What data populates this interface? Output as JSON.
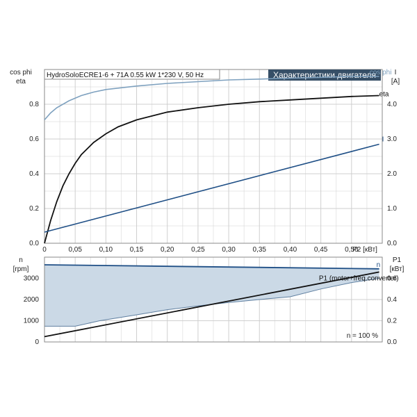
{
  "chart_data": [
    {
      "type": "line",
      "subtitle": "HydroSoloECRE1-6 + 71A   0.55 kW   1*230 V, 50 Hz",
      "title": "Характеристики двигателя",
      "xlabel": "P2 [кВт]",
      "ylabel_left": [
        "cos phi",
        "eta"
      ],
      "ylabel_right": [
        "I",
        "[A]"
      ],
      "xlim": [
        0,
        0.55
      ],
      "ylim_left": [
        0,
        1.0
      ],
      "ylim_right": [
        0,
        5.0
      ],
      "x_ticks": [
        "0",
        "0,05",
        "0,10",
        "0,15",
        "0,20",
        "0,25",
        "0,30",
        "0,35",
        "0,40",
        "0,45",
        "0,50"
      ],
      "y_left_ticks": [
        "0.0",
        "0.2",
        "0.4",
        "0.6",
        "0.8"
      ],
      "y_right_ticks": [
        "0.0",
        "1.0",
        "2.0",
        "3.0",
        "4.0"
      ],
      "grid": true,
      "series": [
        {
          "name": "cos phi",
          "axis": "left",
          "color": "#7ea1bf",
          "x": [
            0,
            0.01,
            0.02,
            0.04,
            0.06,
            0.08,
            0.1,
            0.15,
            0.2,
            0.25,
            0.3,
            0.35,
            0.4,
            0.45,
            0.5,
            0.545
          ],
          "values": [
            0.71,
            0.75,
            0.78,
            0.82,
            0.85,
            0.87,
            0.885,
            0.905,
            0.92,
            0.93,
            0.94,
            0.945,
            0.95,
            0.955,
            0.96,
            0.96
          ]
        },
        {
          "name": "eta",
          "axis": "left",
          "color": "#111111",
          "x": [
            0,
            0.01,
            0.02,
            0.03,
            0.04,
            0.05,
            0.06,
            0.08,
            0.1,
            0.12,
            0.15,
            0.2,
            0.25,
            0.3,
            0.35,
            0.4,
            0.45,
            0.5,
            0.545
          ],
          "values": [
            0.0,
            0.13,
            0.24,
            0.33,
            0.4,
            0.46,
            0.51,
            0.58,
            0.63,
            0.67,
            0.71,
            0.755,
            0.78,
            0.8,
            0.815,
            0.825,
            0.835,
            0.845,
            0.85
          ]
        },
        {
          "name": "I",
          "axis": "right",
          "color": "#1f4f86",
          "x": [
            0,
            0.545
          ],
          "values": [
            0.32,
            2.85
          ]
        }
      ]
    },
    {
      "type": "line",
      "xlabel": "",
      "ylabel_left": [
        "n",
        "[rpm]"
      ],
      "ylabel_right": [
        "P1",
        "[кВт]"
      ],
      "xlim": [
        0,
        0.55
      ],
      "ylim_left": [
        0,
        4000
      ],
      "ylim_right": [
        0,
        0.8
      ],
      "y_left_ticks": [
        "0",
        "1000",
        "2000",
        "3000"
      ],
      "y_right_ticks": [
        "0.0",
        "0.2",
        "0.4",
        "0.6"
      ],
      "grid": true,
      "annotation": "n = 100 %",
      "series": [
        {
          "name": "n",
          "axis": "left",
          "color": "#1f4f86",
          "x": [
            0,
            0.545
          ],
          "values": [
            3640,
            3450
          ]
        },
        {
          "name": "P1 (motor+freq.converter)",
          "axis": "right",
          "color": "#111111",
          "x": [
            0,
            0.545
          ],
          "values": [
            0.05,
            0.66
          ]
        }
      ],
      "band": {
        "color": "#cbd9e6",
        "upper": {
          "x": [
            0,
            0.545
          ],
          "values": [
            3640,
            3450
          ]
        },
        "lower": {
          "x": [
            0,
            0.05,
            0.09,
            0.15,
            0.2,
            0.25,
            0.3,
            0.35,
            0.4,
            0.45,
            0.5,
            0.545
          ],
          "values": [
            740,
            740,
            1000,
            1280,
            1520,
            1700,
            1860,
            2000,
            2130,
            2500,
            2800,
            3000
          ]
        }
      }
    }
  ]
}
